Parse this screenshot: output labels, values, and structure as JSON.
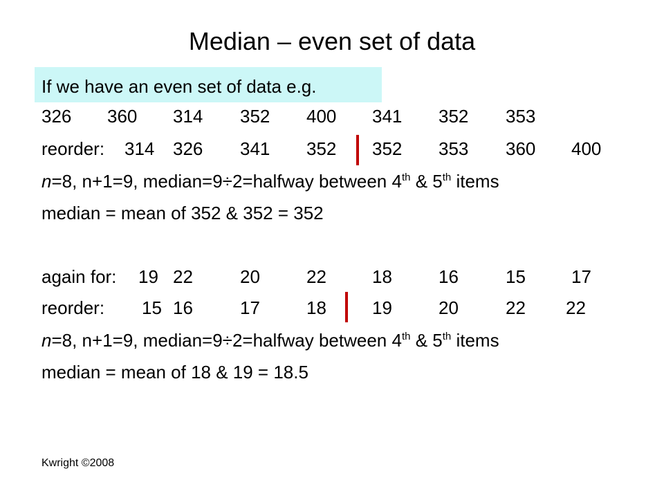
{
  "title": "Median – even set of data",
  "intro": "If we have an even set of data e.g.",
  "example1": {
    "data": [
      326,
      360,
      314,
      352,
      400,
      341,
      352,
      353
    ],
    "reorder_label": "reorder:",
    "reordered": [
      314,
      326,
      341,
      352,
      352,
      353,
      360,
      400
    ],
    "explanation": {
      "variable": "n",
      "text1": "=8, n+1=9, median=9÷2=halfway between 4",
      "sup1": "th",
      "text2": " & 5",
      "sup2": "th",
      "text3": " items"
    },
    "result": "median = mean of 352 & 352 = 352"
  },
  "example2": {
    "data_label": "again for:",
    "data": [
      19,
      22,
      20,
      22,
      18,
      16,
      15,
      17
    ],
    "reorder_label": "reorder:",
    "reordered": [
      15,
      16,
      17,
      18,
      19,
      20,
      22,
      22
    ],
    "explanation": {
      "variable": "n",
      "text1": "=8, n+1=9, median=9÷2=halfway between 4",
      "sup1": "th",
      "text2": " & 5",
      "sup2": "th",
      "text3": " items"
    },
    "result": "median = mean of 18 & 19 = 18.5"
  },
  "footer": "Kwright ©2008"
}
